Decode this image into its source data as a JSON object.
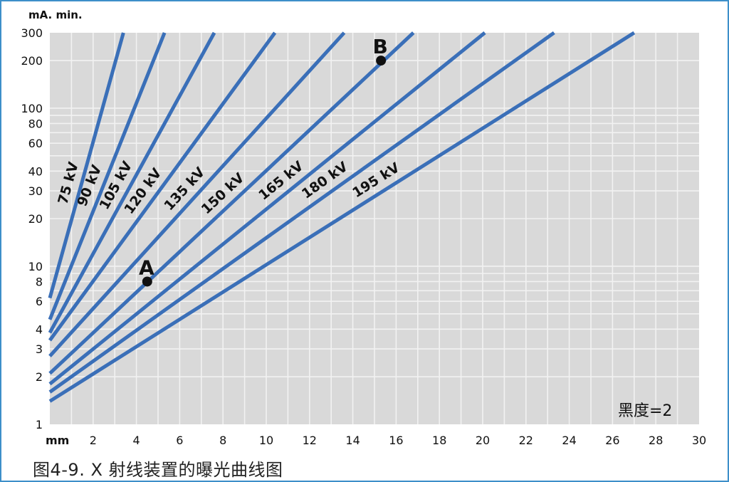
{
  "caption": "图4-9. X 射线装置的曝光曲线图",
  "chart_data": {
    "type": "line",
    "title": "",
    "ylabel": "mA. min.",
    "xlabel": "mm",
    "y_scale": "log",
    "ylim": [
      1,
      300
    ],
    "xlim": [
      0,
      30
    ],
    "x_ticks": [
      2,
      4,
      6,
      8,
      10,
      12,
      14,
      16,
      18,
      20,
      22,
      24,
      26,
      28,
      30
    ],
    "y_ticks": [
      1,
      2,
      3,
      4,
      6,
      8,
      10,
      20,
      30,
      40,
      60,
      80,
      100,
      200,
      300
    ],
    "grid": true,
    "annotation": "黑度=2",
    "series": [
      {
        "name": "75 kV",
        "x": [
          0,
          3.4
        ],
        "y": [
          6.3,
          300
        ]
      },
      {
        "name": "90 kV",
        "x": [
          0,
          5.3
        ],
        "y": [
          4.6,
          300
        ]
      },
      {
        "name": "105 kV",
        "x": [
          0,
          7.6
        ],
        "y": [
          3.8,
          300
        ]
      },
      {
        "name": "120 kV",
        "x": [
          0,
          10.4
        ],
        "y": [
          3.4,
          300
        ]
      },
      {
        "name": "135 kV",
        "x": [
          0,
          13.6
        ],
        "y": [
          2.7,
          300
        ]
      },
      {
        "name": "150 kV",
        "x": [
          0,
          16.8
        ],
        "y": [
          2.1,
          300
        ]
      },
      {
        "name": "165 kV",
        "x": [
          0,
          20.1
        ],
        "y": [
          1.8,
          300
        ]
      },
      {
        "name": "180 kV",
        "x": [
          0,
          23.3
        ],
        "y": [
          1.6,
          300
        ]
      },
      {
        "name": "195 kV",
        "x": [
          0,
          27.0
        ],
        "y": [
          1.4,
          300
        ]
      }
    ],
    "points": [
      {
        "label": "A",
        "x": 4.5,
        "y": 8
      },
      {
        "label": "B",
        "x": 15.3,
        "y": 200
      }
    ],
    "colors": {
      "background": "#d9d9d9",
      "line": "#3a6fb8",
      "grid": "#f2f2f2",
      "frame": "#3d8fc9",
      "text": "#111111"
    }
  }
}
